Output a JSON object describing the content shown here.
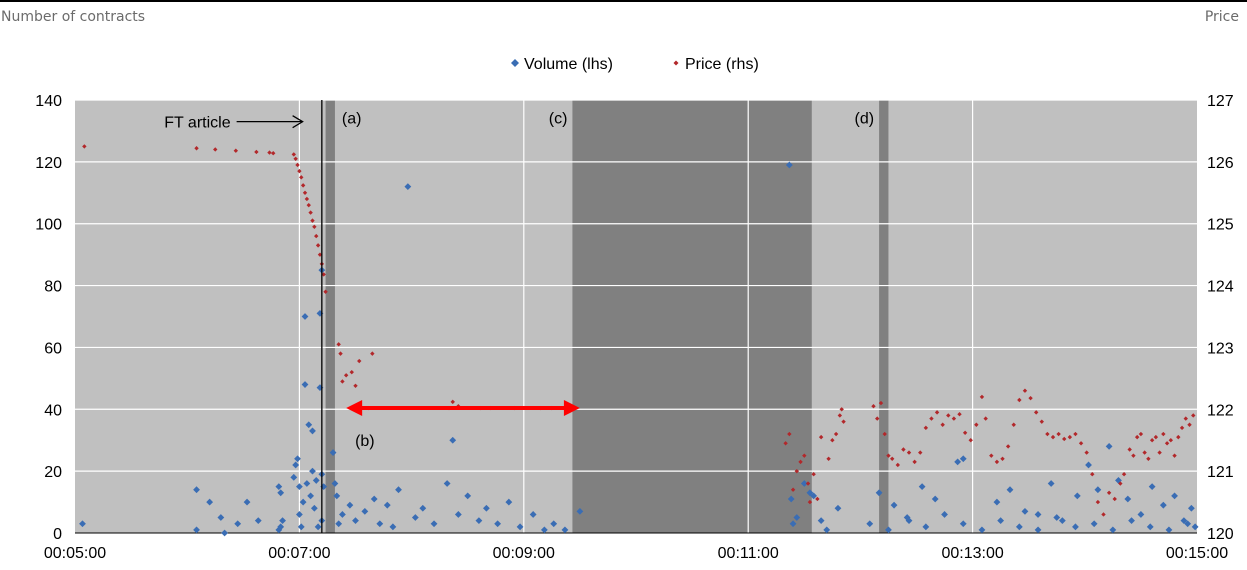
{
  "header": {
    "left_axis_title": "Number of contracts",
    "right_axis_title": "Price"
  },
  "chart_data": {
    "type": "scatter",
    "title": "",
    "x_tick_labels": [
      "00:05:00",
      "00:07:00",
      "00:09:00",
      "00:11:00",
      "00:13:00",
      "00:15:00"
    ],
    "x_ticks_seconds": [
      300,
      420,
      540,
      660,
      780,
      900
    ],
    "xlim_seconds": [
      300,
      900
    ],
    "ylim_left": [
      0,
      140
    ],
    "ylim_right": [
      120,
      127
    ],
    "y_ticks_left": [
      0,
      20,
      40,
      60,
      80,
      100,
      120,
      140
    ],
    "y_ticks_right": [
      120,
      121,
      122,
      123,
      124,
      125,
      126,
      127
    ],
    "grid": true,
    "legend_position": "top-center",
    "colors": {
      "plot_background": "#c0c0c0",
      "shaded_band": "#808080",
      "volume": "#3a6db4",
      "price": "#b2282b",
      "arrow": "#ff0000"
    },
    "series": [
      {
        "name": "Volume (lhs)",
        "axis": "left",
        "marker": "diamond",
        "points": [
          [
            304,
            3
          ],
          [
            365,
            14
          ],
          [
            365,
            1
          ],
          [
            372,
            10
          ],
          [
            378,
            5
          ],
          [
            380,
            0
          ],
          [
            387,
            3
          ],
          [
            392,
            10
          ],
          [
            398,
            4
          ],
          [
            409,
            15
          ],
          [
            410,
            13
          ],
          [
            411,
            4
          ],
          [
            409,
            1
          ],
          [
            410,
            2
          ],
          [
            417,
            18
          ],
          [
            418,
            22
          ],
          [
            419,
            24
          ],
          [
            420,
            6
          ],
          [
            420,
            15
          ],
          [
            421,
            2
          ],
          [
            422,
            10
          ],
          [
            423,
            70
          ],
          [
            423,
            48
          ],
          [
            424,
            16
          ],
          [
            425,
            35
          ],
          [
            426,
            12
          ],
          [
            427,
            33
          ],
          [
            427,
            20
          ],
          [
            428,
            8
          ],
          [
            429,
            17
          ],
          [
            430,
            2
          ],
          [
            431,
            47
          ],
          [
            431,
            71
          ],
          [
            432,
            85
          ],
          [
            432,
            19
          ],
          [
            433,
            15
          ],
          [
            432,
            4
          ],
          [
            438,
            26
          ],
          [
            439,
            16
          ],
          [
            440,
            12
          ],
          [
            441,
            3
          ],
          [
            443,
            6
          ],
          [
            447,
            9
          ],
          [
            450,
            4
          ],
          [
            455,
            7
          ],
          [
            460,
            11
          ],
          [
            463,
            3
          ],
          [
            467,
            9
          ],
          [
            470,
            2
          ],
          [
            473,
            14
          ],
          [
            478,
            112
          ],
          [
            482,
            5
          ],
          [
            486,
            8
          ],
          [
            492,
            3
          ],
          [
            499,
            16
          ],
          [
            502,
            30
          ],
          [
            505,
            6
          ],
          [
            510,
            12
          ],
          [
            516,
            4
          ],
          [
            520,
            8
          ],
          [
            526,
            3
          ],
          [
            532,
            10
          ],
          [
            538,
            2
          ],
          [
            545,
            6
          ],
          [
            551,
            1
          ],
          [
            556,
            3
          ],
          [
            562,
            1
          ],
          [
            570,
            7
          ],
          [
            682,
            119
          ],
          [
            683,
            11
          ],
          [
            684,
            3
          ],
          [
            686,
            5
          ],
          [
            690,
            16
          ],
          [
            693,
            13
          ],
          [
            695,
            12
          ],
          [
            699,
            4
          ],
          [
            702,
            1
          ],
          [
            708,
            8
          ],
          [
            730,
            13
          ],
          [
            738,
            9
          ],
          [
            746,
            4
          ],
          [
            753,
            15
          ],
          [
            760,
            11
          ],
          [
            772,
            23
          ],
          [
            775,
            24
          ],
          [
            793,
            10
          ],
          [
            800,
            14
          ],
          [
            808,
            7
          ],
          [
            815,
            6
          ],
          [
            822,
            16
          ],
          [
            828,
            4
          ],
          [
            836,
            12
          ],
          [
            842,
            22
          ],
          [
            847,
            14
          ],
          [
            853,
            28
          ],
          [
            858,
            17
          ],
          [
            863,
            11
          ],
          [
            870,
            6
          ],
          [
            876,
            15
          ],
          [
            882,
            9
          ],
          [
            888,
            12
          ],
          [
            893,
            4
          ],
          [
            897,
            8
          ],
          [
            899,
            2
          ],
          [
            725,
            3
          ],
          [
            735,
            1
          ],
          [
            745,
            5
          ],
          [
            755,
            2
          ],
          [
            765,
            6
          ],
          [
            775,
            3
          ],
          [
            785,
            1
          ],
          [
            795,
            4
          ],
          [
            805,
            2
          ],
          [
            815,
            1
          ],
          [
            825,
            5
          ],
          [
            835,
            2
          ],
          [
            845,
            3
          ],
          [
            855,
            1
          ],
          [
            865,
            4
          ],
          [
            875,
            2
          ],
          [
            885,
            1
          ],
          [
            895,
            3
          ]
        ]
      },
      {
        "name": "Price (rhs)",
        "axis": "right",
        "marker": "dot",
        "points": [
          [
            305,
            126.25
          ],
          [
            365,
            126.22
          ],
          [
            375,
            126.2
          ],
          [
            386,
            126.18
          ],
          [
            397,
            126.16
          ],
          [
            404,
            126.15
          ],
          [
            406,
            126.14
          ],
          [
            417,
            126.12
          ],
          [
            418,
            126.05
          ],
          [
            419,
            125.95
          ],
          [
            420,
            125.85
          ],
          [
            421,
            125.75
          ],
          [
            422,
            125.62
          ],
          [
            423,
            125.5
          ],
          [
            424,
            125.4
          ],
          [
            425,
            125.3
          ],
          [
            426,
            125.18
          ],
          [
            427,
            125.05
          ],
          [
            428,
            124.95
          ],
          [
            429,
            124.8
          ],
          [
            430,
            124.65
          ],
          [
            431,
            124.5
          ],
          [
            432,
            124.35
          ],
          [
            433,
            124.18
          ],
          [
            434,
            123.9
          ],
          [
            441,
            123.05
          ],
          [
            442,
            122.9
          ],
          [
            443,
            122.45
          ],
          [
            445,
            122.55
          ],
          [
            448,
            122.6
          ],
          [
            450,
            122.38
          ],
          [
            452,
            122.78
          ],
          [
            457,
            122.02
          ],
          [
            459,
            122.9
          ],
          [
            500,
            122.02
          ],
          [
            502,
            122.12
          ],
          [
            505,
            122.05
          ],
          [
            517,
            122.02
          ],
          [
            522,
            122.02
          ],
          [
            535,
            122.02
          ],
          [
            549,
            122.02
          ],
          [
            555,
            122.02
          ],
          [
            562,
            122.02
          ],
          [
            680,
            121.45
          ],
          [
            682,
            121.6
          ],
          [
            684,
            120.7
          ],
          [
            686,
            121.0
          ],
          [
            688,
            121.15
          ],
          [
            690,
            121.25
          ],
          [
            692,
            120.8
          ],
          [
            693,
            120.5
          ],
          [
            695,
            120.95
          ],
          [
            697,
            120.55
          ],
          [
            699,
            121.55
          ],
          [
            703,
            121.2
          ],
          [
            705,
            121.5
          ],
          [
            707,
            121.6
          ],
          [
            709,
            121.9
          ],
          [
            710,
            122.0
          ],
          [
            711,
            121.8
          ],
          [
            727,
            122.05
          ],
          [
            729,
            121.85
          ],
          [
            731,
            122.1
          ],
          [
            733,
            121.6
          ],
          [
            735,
            121.25
          ],
          [
            737,
            121.2
          ],
          [
            740,
            121.1
          ],
          [
            743,
            121.35
          ],
          [
            746,
            121.3
          ],
          [
            749,
            121.15
          ],
          [
            752,
            121.3
          ],
          [
            755,
            121.7
          ],
          [
            758,
            121.85
          ],
          [
            761,
            121.95
          ],
          [
            764,
            121.75
          ],
          [
            767,
            121.9
          ],
          [
            770,
            121.85
          ],
          [
            773,
            121.92
          ],
          [
            776,
            121.62
          ],
          [
            779,
            121.5
          ],
          [
            782,
            121.75
          ],
          [
            785,
            122.2
          ],
          [
            787,
            121.85
          ],
          [
            790,
            121.25
          ],
          [
            793,
            121.15
          ],
          [
            796,
            121.2
          ],
          [
            799,
            121.4
          ],
          [
            802,
            121.75
          ],
          [
            805,
            122.15
          ],
          [
            808,
            122.3
          ],
          [
            811,
            122.18
          ],
          [
            814,
            121.95
          ],
          [
            817,
            121.8
          ],
          [
            820,
            121.6
          ],
          [
            823,
            121.55
          ],
          [
            826,
            121.6
          ],
          [
            829,
            121.52
          ],
          [
            832,
            121.55
          ],
          [
            835,
            121.6
          ],
          [
            838,
            121.45
          ],
          [
            841,
            121.3
          ],
          [
            844,
            120.95
          ],
          [
            847,
            120.5
          ],
          [
            850,
            120.3
          ],
          [
            853,
            120.65
          ],
          [
            856,
            120.55
          ],
          [
            859,
            120.8
          ],
          [
            861,
            120.95
          ],
          [
            864,
            121.35
          ],
          [
            866,
            121.25
          ],
          [
            868,
            121.55
          ],
          [
            870,
            121.6
          ],
          [
            872,
            121.3
          ],
          [
            874,
            121.2
          ],
          [
            876,
            121.5
          ],
          [
            878,
            121.55
          ],
          [
            880,
            121.3
          ],
          [
            882,
            121.6
          ],
          [
            884,
            121.45
          ],
          [
            886,
            121.5
          ],
          [
            888,
            121.25
          ],
          [
            890,
            121.55
          ],
          [
            892,
            121.7
          ],
          [
            894,
            121.85
          ],
          [
            896,
            121.75
          ],
          [
            898,
            121.9
          ]
        ]
      }
    ],
    "shaded_regions_seconds": [
      [
        434,
        439
      ],
      [
        566,
        694
      ],
      [
        730,
        735
      ]
    ],
    "event_line_seconds": 432,
    "arrow": {
      "from_seconds": 445,
      "to_seconds": 570,
      "price": 122.02,
      "direction": "both"
    },
    "annotations": [
      {
        "text": "FT article",
        "x_seconds": 426,
        "price": 126.65,
        "kind": "arrow-label"
      },
      {
        "text": "(a)",
        "x_seconds": 439,
        "price": 126.72,
        "kind": "panel-label"
      },
      {
        "text": "(b)",
        "x_seconds": 455,
        "price": 121.5,
        "kind": "label"
      },
      {
        "text": "(c)",
        "x_seconds": 566,
        "price": 126.72,
        "kind": "panel-label"
      },
      {
        "text": "(d)",
        "x_seconds": 730,
        "price": 126.72,
        "kind": "panel-label"
      }
    ]
  }
}
